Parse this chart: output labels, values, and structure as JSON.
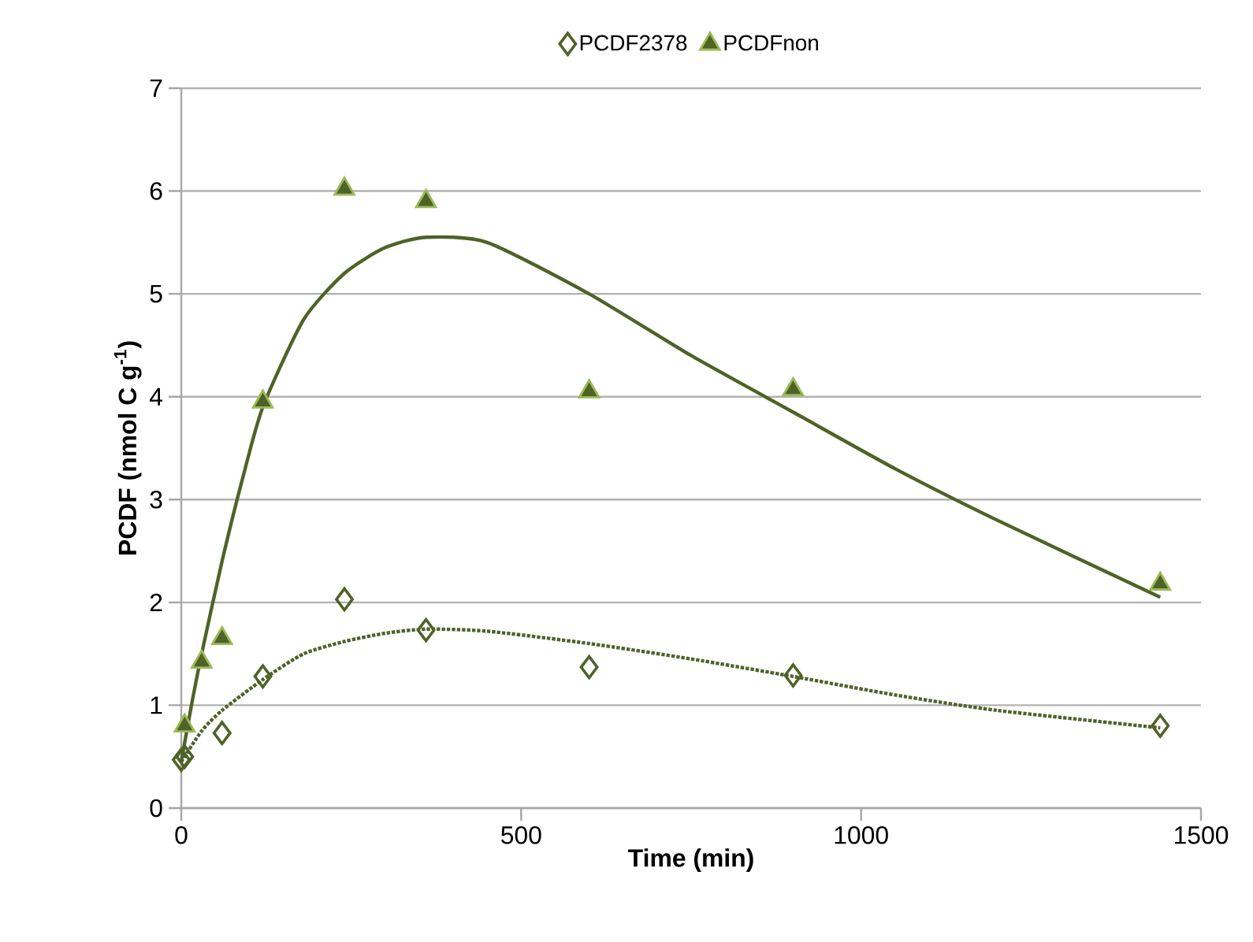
{
  "chart_data": {
    "type": "scatter",
    "xlabel": "Time (min)",
    "ylabel": "PCDF (nmol C g$^{-1}$)",
    "xlim": [
      0,
      1500
    ],
    "ylim": [
      0,
      7
    ],
    "xticks": [
      0,
      500,
      1000,
      1500
    ],
    "yticks": [
      0,
      1,
      2,
      3,
      4,
      5,
      6,
      7
    ],
    "grid": "y",
    "legend": "top",
    "series": [
      {
        "name": "PCDF2378",
        "marker": "diamond",
        "color": "#4f6228",
        "x": [
          0,
          5,
          60,
          120,
          240,
          360,
          600,
          900,
          1440
        ],
        "values": [
          0.47,
          0.5,
          0.73,
          1.28,
          2.03,
          1.73,
          1.37,
          1.29,
          0.8
        ]
      },
      {
        "name": "PCDFnon",
        "marker": "triangle",
        "color": "#4f6228",
        "x": [
          5,
          30,
          60,
          120,
          240,
          360,
          600,
          900,
          1440
        ],
        "values": [
          0.8,
          1.42,
          1.65,
          3.95,
          6.02,
          5.9,
          4.05,
          4.07,
          2.18
        ]
      },
      {
        "type": "line",
        "line_style": "dotted",
        "marker": "none",
        "color": "#4f6228",
        "x": [
          0,
          30,
          60,
          120,
          180,
          240,
          300,
          360,
          450,
          600,
          750,
          900,
          1050,
          1200,
          1440
        ],
        "values": [
          0.45,
          0.75,
          0.95,
          1.25,
          1.5,
          1.62,
          1.7,
          1.74,
          1.72,
          1.6,
          1.45,
          1.28,
          1.1,
          0.95,
          0.78
        ]
      },
      {
        "type": "line",
        "line_style": "solid",
        "marker": "none",
        "color": "#4f6228",
        "x": [
          0,
          15,
          30,
          60,
          90,
          120,
          180,
          240,
          300,
          360,
          450,
          600,
          750,
          900,
          1050,
          1200,
          1440
        ],
        "values": [
          0.45,
          1.0,
          1.5,
          2.4,
          3.2,
          3.9,
          4.75,
          5.2,
          5.45,
          5.55,
          5.5,
          5.0,
          4.4,
          3.85,
          3.3,
          2.8,
          2.05
        ]
      }
    ]
  }
}
